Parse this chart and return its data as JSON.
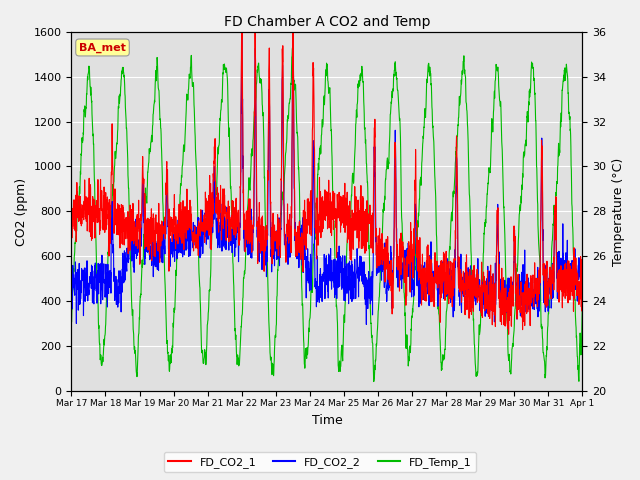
{
  "title": "FD Chamber A CO2 and Temp",
  "xlabel": "Time",
  "ylabel_left": "CO2 (ppm)",
  "ylabel_right": "Temperature (°C)",
  "ylim_left": [
    0,
    1600
  ],
  "ylim_right": [
    20,
    36
  ],
  "yticks_left": [
    0,
    200,
    400,
    600,
    800,
    1000,
    1200,
    1400,
    1600
  ],
  "yticks_right": [
    20,
    22,
    24,
    26,
    28,
    30,
    32,
    34,
    36
  ],
  "xtick_labels": [
    "Mar 17",
    "Mar 18",
    "Mar 19",
    "Mar 20",
    "Mar 21",
    "Mar 22",
    "Mar 23",
    "Mar 24",
    "Mar 25",
    "Mar 26",
    "Mar 27",
    "Mar 28",
    "Mar 29",
    "Mar 30",
    "Mar 31",
    "Apr 1"
  ],
  "color_co2_1": "#ff0000",
  "color_co2_2": "#0000ff",
  "color_temp": "#00bb00",
  "legend_labels": [
    "FD_CO2_1",
    "FD_CO2_2",
    "FD_Temp_1"
  ],
  "annotation_text": "BA_met",
  "annotation_color_text": "#cc0000",
  "annotation_bg": "#ffff99",
  "plot_bg_color": "#e0e0e0",
  "fig_bg_color": "#f0f0f0",
  "title_fontsize": 10,
  "axis_fontsize": 9,
  "tick_fontsize": 8,
  "linewidth": 0.8,
  "n_days": 15,
  "samples_per_day": 144
}
